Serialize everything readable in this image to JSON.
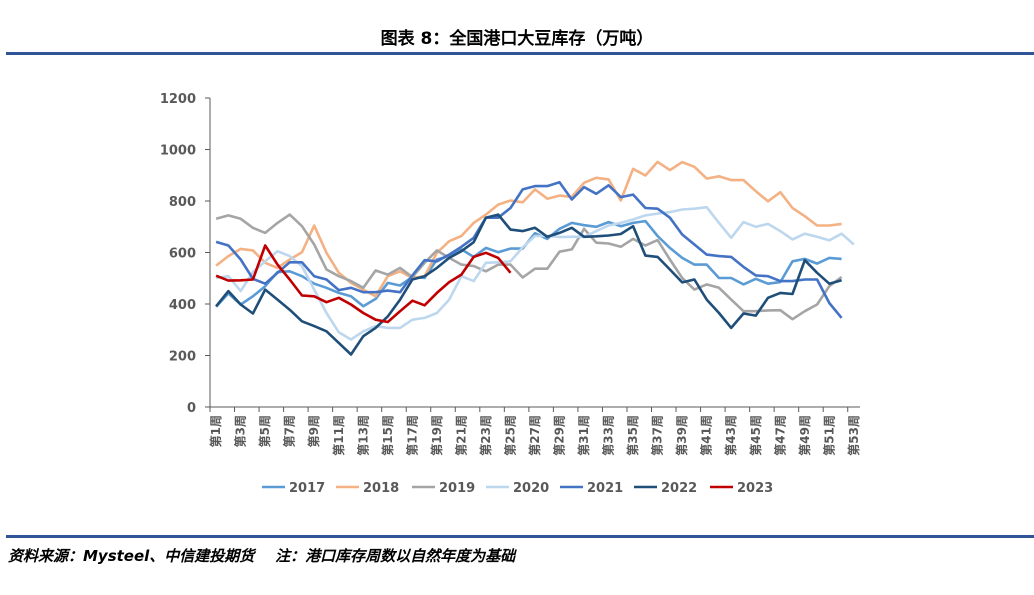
{
  "title": "图表 8：全国港口大豆库存（万吨）",
  "footer": "资料来源：Mysteel、中信建投期货    注：港口库存周数以自然年度为基础",
  "chart_data": {
    "type": "line",
    "title": "图表 8：全国港口大豆库存（万吨）",
    "xlabel": "",
    "ylabel": "",
    "ylim": [
      0,
      1200
    ],
    "yticks": [
      "0",
      "200",
      "400",
      "600",
      "800",
      "1000",
      "1200"
    ],
    "x_tick_labels": [
      "第1周",
      "第3周",
      "第5周",
      "第7周",
      "第9周",
      "第11周",
      "第13周",
      "第15周",
      "第17周",
      "第19周",
      "第21周",
      "第23周",
      "第25周",
      "第27周",
      "第29周",
      "第31周",
      "第33周",
      "第35周",
      "第37周",
      "第39周",
      "第41周",
      "第43周",
      "第45周",
      "第47周",
      "第49周",
      "第51周",
      "第53周"
    ],
    "categories_count": 53,
    "grid": false,
    "legend": "bottom",
    "series": [
      {
        "name": "2017",
        "color": "#5b9bd5",
        "values": [
          389,
          441,
          398,
          430,
          469,
          524,
          527,
          508,
          479,
          463,
          443,
          430,
          391,
          420,
          482,
          472,
          505,
          501,
          573,
          586,
          612,
          583,
          618,
          601,
          615,
          615,
          675,
          653,
          692,
          715,
          706,
          700,
          718,
          702,
          715,
          722,
          664,
          618,
          579,
          553,
          553,
          501,
          501,
          476,
          498,
          479,
          485,
          566,
          575,
          557,
          579,
          575
        ]
      },
      {
        "name": "2018",
        "color": "#f4b183",
        "values": [
          549,
          586,
          614,
          608,
          560,
          540,
          573,
          601,
          705,
          599,
          521,
          482,
          456,
          430,
          508,
          527,
          501,
          508,
          599,
          644,
          664,
          715,
          747,
          786,
          802,
          795,
          845,
          809,
          821,
          816,
          871,
          890,
          884,
          802,
          925,
          899,
          952,
          920,
          951,
          933,
          887,
          896,
          881,
          881,
          838,
          799,
          834,
          773,
          741,
          705,
          705,
          711
        ]
      },
      {
        "name": "2019",
        "color": "#a5a5a5",
        "values": [
          731,
          744,
          731,
          696,
          676,
          715,
          747,
          702,
          631,
          534,
          508,
          489,
          463,
          530,
          514,
          540,
          505,
          560,
          608,
          579,
          553,
          547,
          527,
          553,
          553,
          503,
          537,
          537,
          603,
          612,
          692,
          638,
          635,
          622,
          653,
          627,
          648,
          573,
          501,
          456,
          476,
          463,
          417,
          372,
          372,
          375,
          376,
          341,
          372,
          398,
          469,
          505
        ]
      },
      {
        "name": "2020",
        "color": "#bdd7ee",
        "values": [
          501,
          508,
          450,
          524,
          566,
          605,
          586,
          547,
          456,
          365,
          290,
          262,
          294,
          314,
          307,
          307,
          339,
          346,
          365,
          417,
          508,
          489,
          560,
          562,
          566,
          620,
          664,
          664,
          660,
          661,
          661,
          683,
          705,
          715,
          728,
          744,
          751,
          757,
          767,
          770,
          776,
          715,
          657,
          718,
          700,
          711,
          683,
          651,
          673,
          661,
          647,
          673,
          631
        ]
      },
      {
        "name": "2021",
        "color": "#4472c4",
        "values": [
          641,
          627,
          573,
          498,
          479,
          521,
          562,
          562,
          508,
          495,
          454,
          463,
          446,
          446,
          452,
          446,
          511,
          570,
          566,
          592,
          622,
          657,
          735,
          735,
          773,
          845,
          858,
          858,
          873,
          806,
          854,
          828,
          861,
          815,
          825,
          773,
          770,
          735,
          670,
          631,
          592,
          586,
          583,
          544,
          511,
          508,
          489,
          489,
          495,
          495,
          404,
          346
        ]
      },
      {
        "name": "2022",
        "color": "#1f4e79",
        "values": [
          391,
          450,
          398,
          363,
          456,
          417,
          378,
          333,
          314,
          294,
          249,
          204,
          275,
          307,
          352,
          417,
          495,
          508,
          540,
          579,
          605,
          640,
          735,
          747,
          689,
          683,
          696,
          661,
          676,
          696,
          661,
          663,
          666,
          672,
          702,
          588,
          583,
          534,
          484,
          495,
          417,
          365,
          307,
          363,
          355,
          424,
          443,
          439,
          570,
          521,
          479,
          492
        ]
      },
      {
        "name": "2023",
        "color": "#c00000",
        "values": [
          510,
          491,
          492,
          495,
          627,
          553,
          495,
          433,
          430,
          407,
          424,
          398,
          365,
          339,
          330,
          372,
          413,
          395,
          443,
          485,
          514,
          583,
          599,
          579,
          521
        ]
      }
    ]
  }
}
